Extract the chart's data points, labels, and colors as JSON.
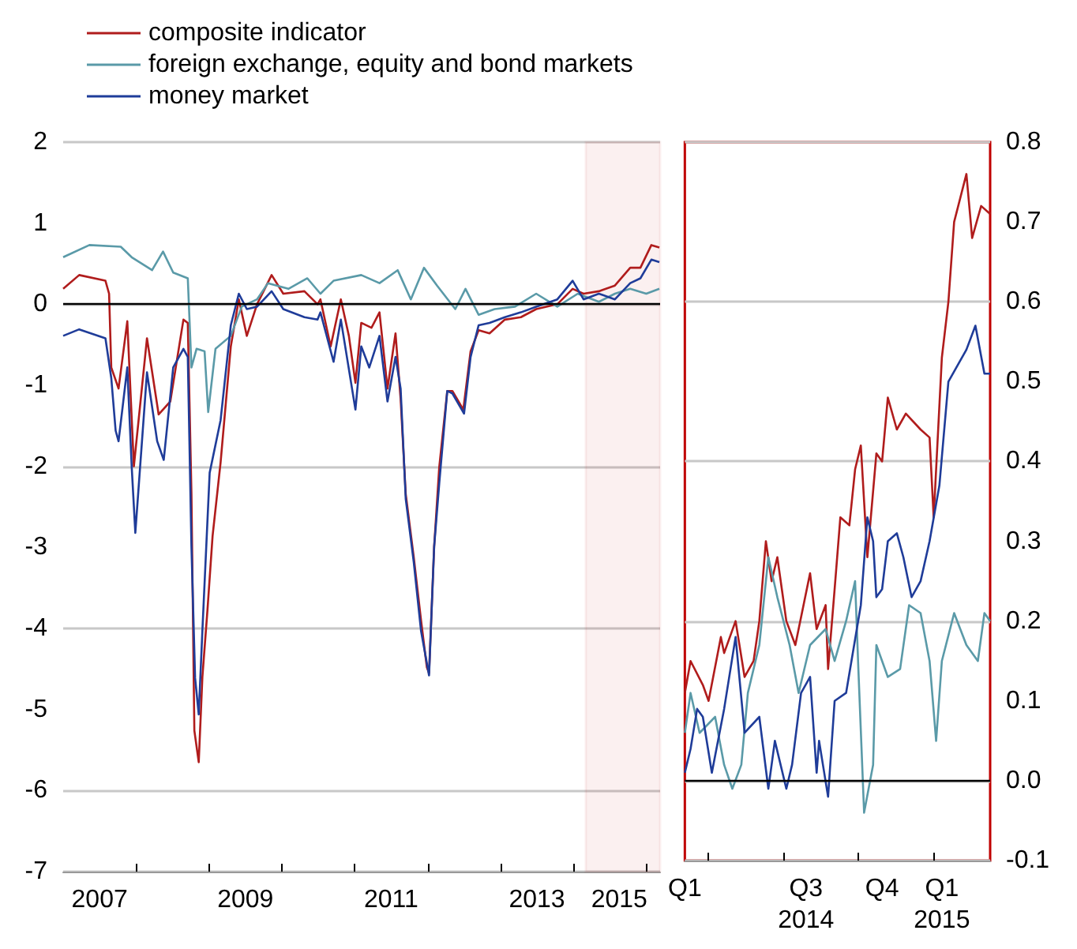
{
  "chart_data": [
    {
      "type": "line",
      "legend": "top left",
      "grid": "y",
      "xlim": [
        2007,
        2015.19
      ],
      "xticks": [
        {
          "value": 2007.5,
          "label": "2007"
        },
        {
          "value": 2008,
          "label": null
        },
        {
          "value": 2009,
          "label": null
        },
        {
          "value": 2009.5,
          "label": "2009"
        },
        {
          "value": 2010,
          "label": null
        },
        {
          "value": 2011,
          "label": null
        },
        {
          "value": 2011.5,
          "label": "2011"
        },
        {
          "value": 2012,
          "label": null
        },
        {
          "value": 2013,
          "label": null
        },
        {
          "value": 2013.5,
          "label": "2013"
        },
        {
          "value": 2014,
          "label": null
        },
        {
          "value": 2014.63,
          "label": "2015"
        },
        {
          "value": 2015,
          "label": null
        }
      ],
      "ylim": [
        -7,
        2
      ],
      "yticks": [
        -7,
        -6,
        -5,
        -4,
        -3,
        -2,
        -1,
        0,
        1,
        2
      ],
      "ref_lines": [
        {
          "axis": "y",
          "value": 0,
          "color": "#000000"
        }
      ],
      "bands": [
        {
          "axis": "x",
          "from": 2014.17,
          "to": 2015.19,
          "color": "#c00000"
        }
      ],
      "series": [
        {
          "name": "composite indicator",
          "color": "#b01c1c",
          "x": [
            2007.0,
            2007.22,
            2007.58,
            2007.63,
            2007.66,
            2007.76,
            2007.88,
            2007.97,
            2008.15,
            2008.31,
            2008.47,
            2008.65,
            2008.71,
            2008.76,
            2008.8,
            2008.86,
            2008.91,
            2008.98,
            2009.05,
            2009.16,
            2009.3,
            2009.41,
            2009.52,
            2009.66,
            2009.86,
            2010.02,
            2010.31,
            2010.49,
            2010.53,
            2010.67,
            2010.81,
            2010.92,
            2011.01,
            2011.09,
            2011.23,
            2011.34,
            2011.45,
            2011.56,
            2011.63,
            2011.7,
            2011.81,
            2011.91,
            2011.99,
            2012.02,
            2012.09,
            2012.16,
            2012.27,
            2012.34,
            2012.49,
            2012.59,
            2012.7,
            2012.85,
            2013.06,
            2013.28,
            2013.49,
            2013.78,
            2013.99,
            2014.14,
            2014.35,
            2014.57,
            2014.78,
            2014.92,
            2015.07,
            2015.18
          ],
          "values": [
            0.19,
            0.36,
            0.29,
            0.13,
            -0.78,
            -1.04,
            -0.21,
            -2.0,
            -0.42,
            -1.36,
            -1.2,
            -0.19,
            -0.23,
            -2.34,
            -5.26,
            -5.65,
            -4.6,
            -3.77,
            -2.86,
            -1.95,
            -0.52,
            0.06,
            -0.39,
            0,
            0.36,
            0.13,
            0.16,
            0,
            0.06,
            -0.52,
            0.06,
            -0.39,
            -0.97,
            -0.23,
            -0.29,
            -0.1,
            -1.04,
            -0.36,
            -1.17,
            -2.34,
            -3.12,
            -3.9,
            -4.48,
            -4.55,
            -2.99,
            -2.01,
            -1.07,
            -1.07,
            -1.3,
            -0.58,
            -0.32,
            -0.36,
            -0.19,
            -0.16,
            -0.06,
            0,
            0.19,
            0.13,
            0.16,
            0.23,
            0.45,
            0.45,
            0.73,
            0.7
          ]
        },
        {
          "name": "foreign exchange, equity and bond markets",
          "color": "#5a9aa8",
          "x": [
            2007.0,
            2007.36,
            2007.79,
            2007.94,
            2008.22,
            2008.37,
            2008.51,
            2008.71,
            2008.76,
            2008.83,
            2008.94,
            2008.99,
            2009.09,
            2009.3,
            2009.45,
            2009.66,
            2009.81,
            2010.09,
            2010.35,
            2010.53,
            2010.71,
            2011.09,
            2011.34,
            2011.59,
            2011.77,
            2011.95,
            2012.13,
            2012.38,
            2012.52,
            2012.7,
            2012.92,
            2013.2,
            2013.49,
            2013.78,
            2014.06,
            2014.35,
            2014.57,
            2014.78,
            2015.0,
            2015.18
          ],
          "values": [
            0.58,
            0.73,
            0.71,
            0.58,
            0.42,
            0.65,
            0.39,
            0.32,
            -0.78,
            -0.55,
            -0.58,
            -1.33,
            -0.55,
            -0.39,
            -0.03,
            0.06,
            0.26,
            0.19,
            0.32,
            0.13,
            0.29,
            0.36,
            0.26,
            0.42,
            0.06,
            0.45,
            0.23,
            -0.06,
            0.19,
            -0.13,
            -0.06,
            -0.03,
            0.13,
            -0.03,
            0.13,
            0.03,
            0.13,
            0.19,
            0.13,
            0.19
          ]
        },
        {
          "name": "money market",
          "color": "#1f3c99",
          "x": [
            2007.0,
            2007.22,
            2007.58,
            2007.66,
            2007.72,
            2007.76,
            2007.88,
            2007.94,
            2007.99,
            2008.15,
            2008.29,
            2008.38,
            2008.51,
            2008.65,
            2008.71,
            2008.76,
            2008.81,
            2008.86,
            2008.91,
            2009.01,
            2009.16,
            2009.3,
            2009.41,
            2009.52,
            2009.66,
            2009.86,
            2010.02,
            2010.31,
            2010.49,
            2010.53,
            2010.71,
            2010.81,
            2011.01,
            2011.09,
            2011.2,
            2011.34,
            2011.45,
            2011.56,
            2011.63,
            2011.7,
            2011.81,
            2011.91,
            2012.02,
            2012.09,
            2012.16,
            2012.27,
            2012.34,
            2012.5,
            2012.59,
            2012.7,
            2012.85,
            2013.06,
            2013.28,
            2013.49,
            2013.78,
            2013.99,
            2014.14,
            2014.35,
            2014.57,
            2014.78,
            2014.92,
            2015.07,
            2015.18
          ],
          "values": [
            -0.39,
            -0.31,
            -0.42,
            -0.91,
            -1.56,
            -1.69,
            -0.78,
            -2.0,
            -2.82,
            -0.84,
            -1.69,
            -1.92,
            -0.78,
            -0.55,
            -0.65,
            -2.99,
            -4.61,
            -5.06,
            -4.03,
            -2.08,
            -1.43,
            -0.26,
            0.13,
            -0.06,
            -0.03,
            0.16,
            -0.06,
            -0.16,
            -0.19,
            -0.1,
            -0.71,
            -0.19,
            -1.3,
            -0.52,
            -0.78,
            -0.39,
            -1.2,
            -0.65,
            -1.04,
            -2.4,
            -3.18,
            -4.03,
            -4.58,
            -2.99,
            -2.21,
            -1.07,
            -1.1,
            -1.35,
            -0.65,
            -0.26,
            -0.23,
            -0.16,
            -0.1,
            -0.03,
            0.06,
            0.29,
            0.06,
            0.13,
            0.06,
            0.26,
            0.32,
            0.55,
            0.52
          ]
        }
      ]
    },
    {
      "type": "line",
      "grid": "y",
      "xlim": [
        "2014-03-03",
        "2015-03-11"
      ],
      "xticks": [
        {
          "value": "2014-03-03",
          "label": "Q1"
        },
        {
          "value": "2014-04-01",
          "label": null
        },
        {
          "value": "2014-07-01",
          "label": null
        },
        {
          "value": "2014-07-29",
          "label": "Q3\n2014"
        },
        {
          "value": "2014-10-01",
          "label": null
        },
        {
          "value": "2014-10-30",
          "label": "Q4"
        },
        {
          "value": "2015-01-01",
          "label": null
        },
        {
          "value": "2015-01-11",
          "label": "Q1\n2015"
        }
      ],
      "y2lim": [
        -0.1,
        0.8
      ],
      "y2ticks": [
        -0.1,
        {
          "value": 0,
          "label": "0.0"
        },
        0.1,
        0.2,
        0.3,
        0.4,
        0.5,
        0.6,
        0.7,
        0.8
      ],
      "ref_lines": [
        {
          "axis": "y2",
          "value": 0,
          "color": "#000000"
        }
      ],
      "series": [
        {
          "axis": "y2",
          "color": "#b01c1c",
          "x": [
            "2014-03-03",
            "2014-03-10",
            "2014-03-25",
            "2014-04-01",
            "2014-04-16",
            "2014-04-20",
            "2014-05-04",
            "2014-05-15",
            "2014-05-26",
            "2014-06-02",
            "2014-06-10",
            "2014-06-17",
            "2014-06-24",
            "2014-07-05",
            "2014-07-16",
            "2014-08-03",
            "2014-08-11",
            "2014-08-22",
            "2014-08-25",
            "2014-09-02",
            "2014-09-09",
            "2014-09-20",
            "2014-09-27",
            "2014-10-04",
            "2014-10-12",
            "2014-10-23",
            "2014-10-30",
            "2014-11-06",
            "2014-11-17",
            "2014-11-28",
            "2014-12-16",
            "2014-12-27",
            "2015-01-01",
            "2015-01-11",
            "2015-01-19",
            "2015-01-26",
            "2015-02-10",
            "2015-02-17",
            "2015-02-28",
            "2015-03-11"
          ],
          "values": [
            0.11,
            0.15,
            0.12,
            0.1,
            0.18,
            0.16,
            0.2,
            0.13,
            0.15,
            0.2,
            0.3,
            0.25,
            0.28,
            0.2,
            0.17,
            0.26,
            0.19,
            0.22,
            0.14,
            0.24,
            0.33,
            0.32,
            0.39,
            0.42,
            0.28,
            0.41,
            0.4,
            0.48,
            0.44,
            0.46,
            0.44,
            0.43,
            0.33,
            0.53,
            0.6,
            0.7,
            0.76,
            0.68,
            0.72,
            0.71
          ]
        },
        {
          "axis": "y2",
          "color": "#5a9aa8",
          "x": [
            "2014-03-03",
            "2014-03-10",
            "2014-03-21",
            "2014-04-09",
            "2014-04-20",
            "2014-04-30",
            "2014-05-11",
            "2014-05-19",
            "2014-06-02",
            "2014-06-13",
            "2014-06-24",
            "2014-07-09",
            "2014-07-20",
            "2014-08-03",
            "2014-08-22",
            "2014-09-02",
            "2014-09-16",
            "2014-09-27",
            "2014-10-01",
            "2014-10-08",
            "2014-10-19",
            "2014-10-23",
            "2014-11-06",
            "2014-11-21",
            "2014-12-02",
            "2014-12-16",
            "2014-12-27",
            "2015-01-04",
            "2015-01-11",
            "2015-01-26",
            "2015-02-10",
            "2015-02-24",
            "2015-03-04",
            "2015-03-11"
          ],
          "values": [
            0.06,
            0.11,
            0.06,
            0.08,
            0.02,
            -0.01,
            0.02,
            0.11,
            0.17,
            0.28,
            0.23,
            0.17,
            0.11,
            0.17,
            0.19,
            0.15,
            0.2,
            0.25,
            0.14,
            -0.04,
            0.02,
            0.17,
            0.13,
            0.14,
            0.22,
            0.21,
            0.15,
            0.05,
            0.15,
            0.21,
            0.17,
            0.15,
            0.21,
            0.2
          ]
        },
        {
          "axis": "y2",
          "color": "#1f3c99",
          "x": [
            "2014-03-03",
            "2014-03-10",
            "2014-03-18",
            "2014-03-25",
            "2014-04-05",
            "2014-04-20",
            "2014-05-04",
            "2014-05-15",
            "2014-06-02",
            "2014-06-13",
            "2014-06-21",
            "2014-07-05",
            "2014-07-12",
            "2014-07-23",
            "2014-08-03",
            "2014-08-11",
            "2014-08-14",
            "2014-08-25",
            "2014-09-02",
            "2014-09-16",
            "2014-10-04",
            "2014-10-12",
            "2014-10-19",
            "2014-10-23",
            "2014-10-30",
            "2014-11-06",
            "2014-11-17",
            "2014-11-25",
            "2014-12-05",
            "2014-12-16",
            "2014-12-27",
            "2015-01-08",
            "2015-01-19",
            "2015-01-30",
            "2015-02-10",
            "2015-02-21",
            "2015-03-04",
            "2015-03-11"
          ],
          "values": [
            0.01,
            0.04,
            0.09,
            0.08,
            0.01,
            0.09,
            0.18,
            0.06,
            0.08,
            -0.01,
            0.05,
            -0.01,
            0.02,
            0.11,
            0.13,
            0.01,
            0.05,
            -0.02,
            0.1,
            0.11,
            0.22,
            0.33,
            0.3,
            0.23,
            0.24,
            0.3,
            0.31,
            0.28,
            0.23,
            0.25,
            0.3,
            0.37,
            0.5,
            0.52,
            0.54,
            0.57,
            0.51,
            0.51
          ]
        }
      ]
    }
  ]
}
